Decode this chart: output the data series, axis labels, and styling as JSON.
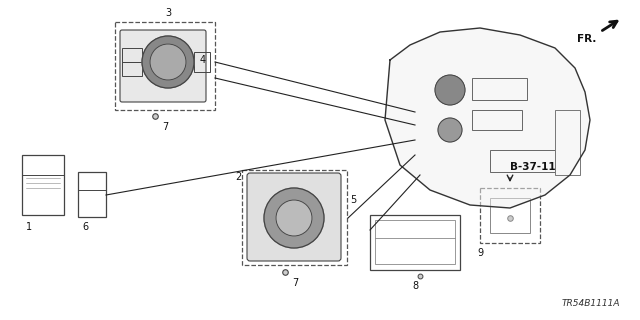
{
  "bg_color": "#ffffff",
  "fig_width": 6.4,
  "fig_height": 3.2,
  "dpi": 100,
  "part_number": "TR54B1111A",
  "reference_label": "B-37-11",
  "direction_label": "FR.",
  "line_color": "#222222",
  "label_color": "#111111",
  "comp_color": "#444444",
  "dash_color": "#555555"
}
